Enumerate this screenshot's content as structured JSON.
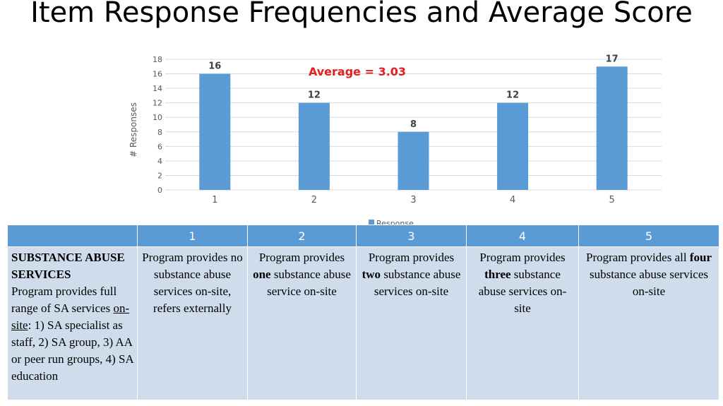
{
  "title": "Item Response Frequencies and Average Score",
  "chart_data": {
    "type": "bar",
    "categories": [
      "1",
      "2",
      "3",
      "4",
      "5"
    ],
    "series": [
      {
        "name": "Response",
        "values": [
          16,
          12,
          8,
          12,
          17
        ]
      }
    ],
    "data_labels": [
      "16",
      "12",
      "8",
      "12",
      "17"
    ],
    "ylabel": "# Responses",
    "xlabel": "",
    "ylim": [
      0,
      18
    ],
    "yticks": [
      0,
      2,
      4,
      6,
      8,
      10,
      12,
      14,
      16,
      18
    ],
    "grid": true,
    "legend": "bottom",
    "annotation": "Average = 3.03",
    "colors": {
      "bar": "#5b9bd5",
      "annotation": "#e81e1e",
      "grid": "#d9d9d9"
    }
  },
  "table": {
    "headers": [
      "",
      "1",
      "2",
      "3",
      "4",
      "5"
    ],
    "first_col": {
      "heading": "SUBSTANCE ABUSE SERVICES",
      "desc_a": "Program provides full range of SA services ",
      "desc_link": "on-site",
      "desc_b": ":  1) SA specialist as staff, 2) SA group, 3) AA or peer run groups, 4) SA education"
    },
    "cells": [
      {
        "pre": "Program provides no substance abuse services on-site, refers externally",
        "bold": "",
        "post": ""
      },
      {
        "pre": "Program provides ",
        "bold": "one",
        "post": " substance abuse service on-site"
      },
      {
        "pre": "Program provides ",
        "bold": "two",
        "post": " substance abuse services on-site"
      },
      {
        "pre": "Program provides ",
        "bold": "three",
        "post": " substance abuse services on-site"
      },
      {
        "pre": "Program provides all ",
        "bold": "four",
        "post": " substance abuse services on-site"
      }
    ]
  }
}
